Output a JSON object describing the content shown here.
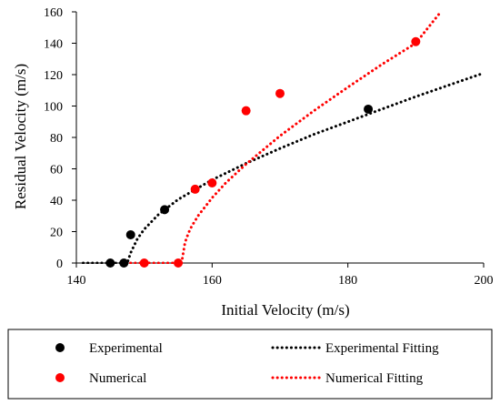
{
  "chart_data": {
    "type": "scatter",
    "title": "",
    "xlabel": "Initial Velocity (m/s)",
    "ylabel": "Residual Velocity (m/s)",
    "xlim": [
      140,
      200
    ],
    "ylim": [
      0,
      160
    ],
    "xticks": [
      140,
      160,
      180,
      200
    ],
    "yticks": [
      0,
      20,
      40,
      60,
      80,
      100,
      120,
      140,
      160
    ],
    "grid": false,
    "legend_position": "bottom",
    "series": [
      {
        "name": "Experimental",
        "kind": "markers",
        "color": "#000000",
        "x": [
          145,
          147,
          148,
          153,
          183
        ],
        "y": [
          0,
          0,
          18,
          34,
          98
        ]
      },
      {
        "name": "Numerical",
        "kind": "markers",
        "color": "#ff0000",
        "x": [
          150,
          155,
          157.5,
          160,
          165,
          170,
          190
        ],
        "y": [
          0,
          0,
          47,
          51,
          97,
          108,
          141
        ]
      },
      {
        "name": "Experimental Fitting",
        "kind": "dotted-line",
        "color": "#000000",
        "x": [
          141,
          147.5,
          148,
          149,
          150,
          152,
          155,
          160,
          165,
          170,
          175,
          180,
          185,
          190,
          195,
          200
        ],
        "y": [
          0,
          0,
          6.5,
          15.5,
          21.5,
          30.5,
          40.5,
          53,
          63.5,
          73,
          82,
          90,
          98,
          106,
          113.5,
          121
        ]
      },
      {
        "name": "Numerical Fitting",
        "kind": "dotted-line",
        "color": "#ff0000",
        "x": [
          148,
          155.5,
          156,
          156.5,
          157,
          158,
          159,
          160,
          162,
          165,
          170,
          175,
          180,
          185,
          190,
          193.5
        ],
        "y": [
          0,
          0,
          13,
          19,
          23.5,
          30.5,
          36,
          41.5,
          51,
          63,
          81,
          97,
          112,
          126.5,
          140,
          159
        ]
      }
    ],
    "legend": {
      "rows": [
        [
          {
            "label": "Experimental",
            "series": 0
          },
          {
            "label": "Experimental Fitting",
            "series": 2
          }
        ],
        [
          {
            "label": "Numerical",
            "series": 1
          },
          {
            "label": "Numerical Fitting",
            "series": 3
          }
        ]
      ]
    }
  }
}
